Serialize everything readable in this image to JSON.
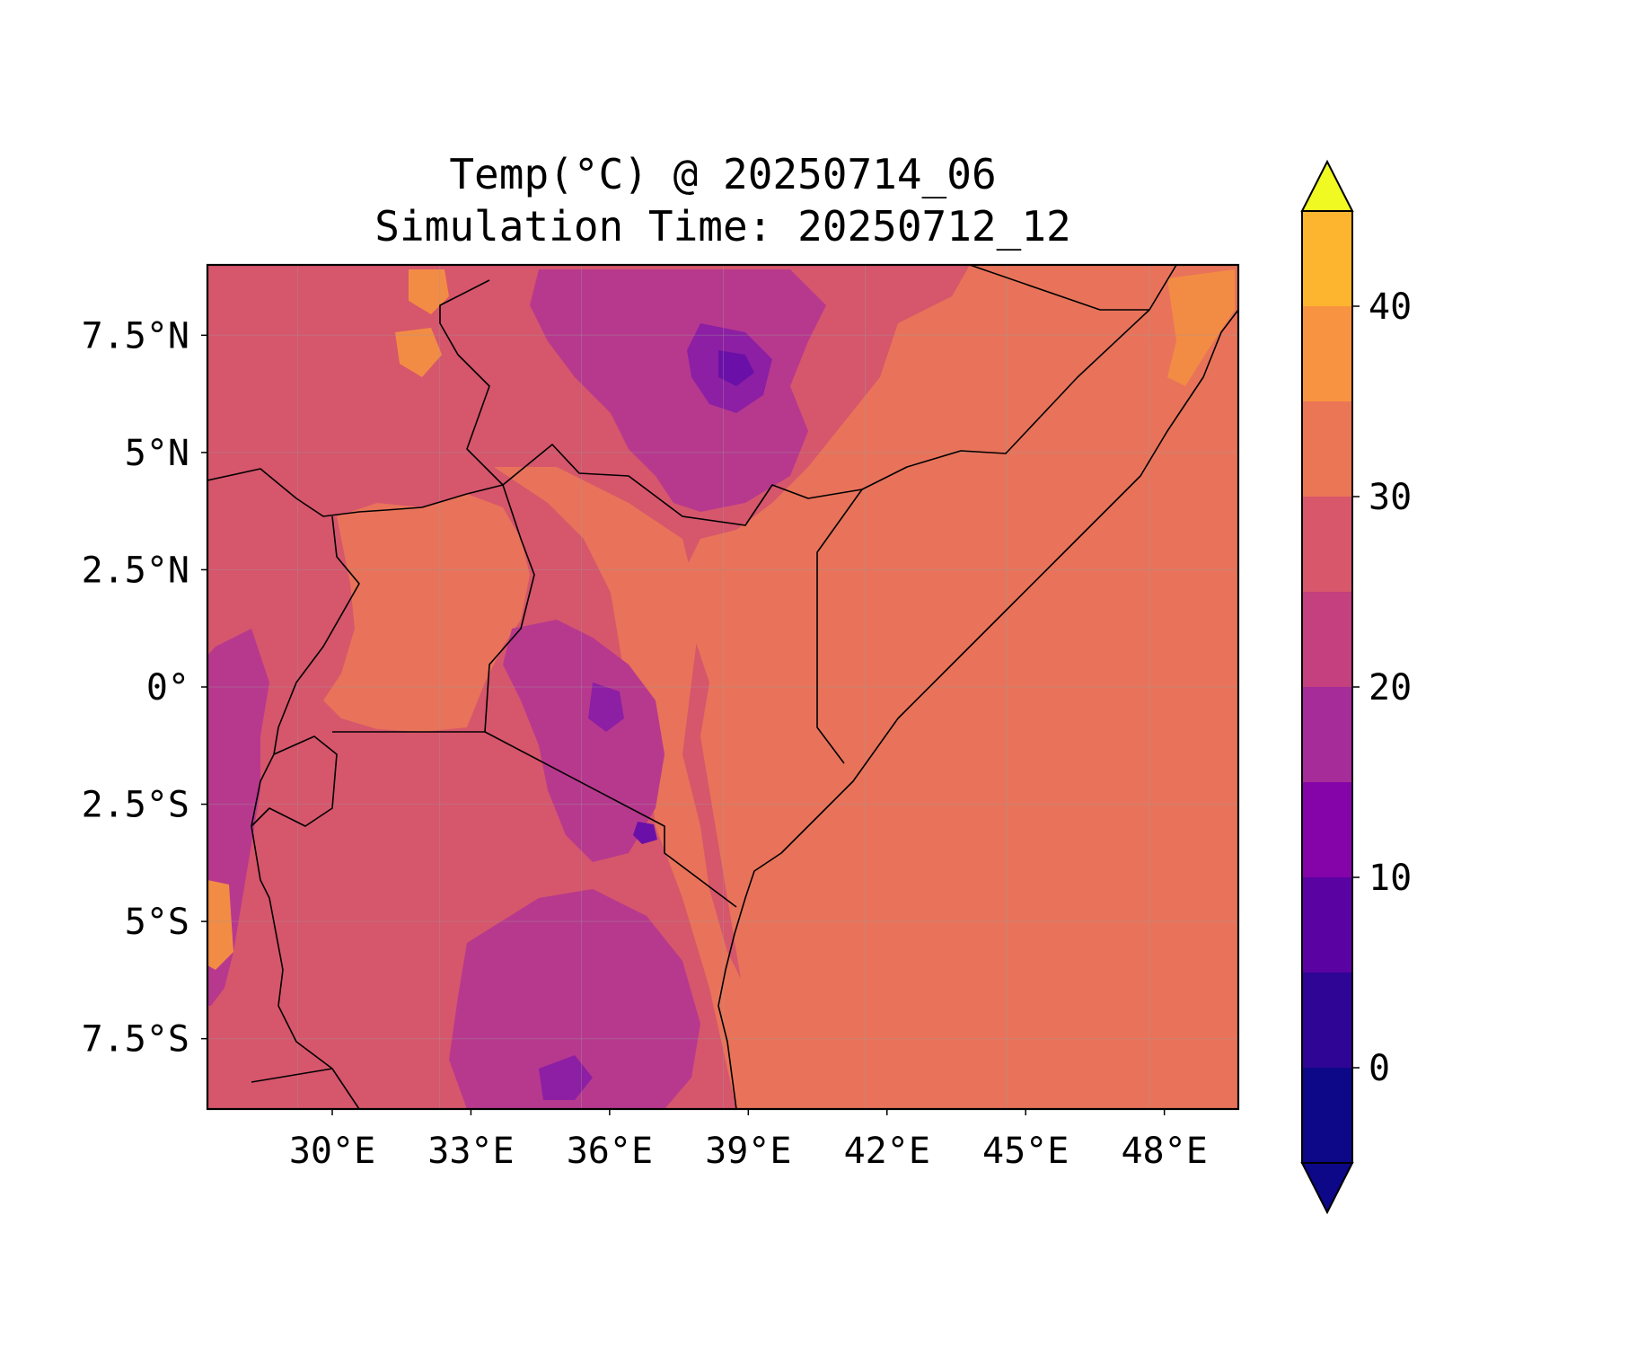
{
  "title": {
    "line1": "Temp(°C) @ 20250714_06",
    "line2": "Simulation Time: 20250712_12"
  },
  "map": {
    "lon_range": [
      27.3,
      49.6
    ],
    "lat_range": [
      -9.0,
      9.0
    ],
    "lon_ticks": [
      30,
      33,
      36,
      39,
      42,
      45,
      48
    ],
    "lon_tick_labels": [
      "30°E",
      "33°E",
      "36°E",
      "39°E",
      "42°E",
      "45°E",
      "48°E"
    ],
    "lat_ticks": [
      7.5,
      5,
      2.5,
      0,
      -2.5,
      -5,
      -7.5
    ],
    "lat_tick_labels": [
      "7.5°N",
      "5°N",
      "2.5°N",
      "0°",
      "2.5°S",
      "5°S",
      "7.5°S"
    ],
    "gridlines": true,
    "field": "temperature",
    "units": "°C"
  },
  "colorbar": {
    "ticks": [
      0,
      10,
      20,
      30,
      40
    ],
    "tick_labels": [
      "0",
      "10",
      "20",
      "30",
      "40"
    ],
    "levels": [
      -5,
      0,
      5,
      10,
      15,
      20,
      25,
      30,
      35,
      40,
      45
    ],
    "extend": "both",
    "colors": [
      "#0d0887",
      "#2f0596",
      "#5b02a3",
      "#8404a9",
      "#a52c99",
      "#c5407e",
      "#d8576b",
      "#eb7655",
      "#f89441",
      "#fdb42f",
      "#f0f921"
    ],
    "under_color": "#0d0887",
    "over_color": "#f0f921"
  }
}
